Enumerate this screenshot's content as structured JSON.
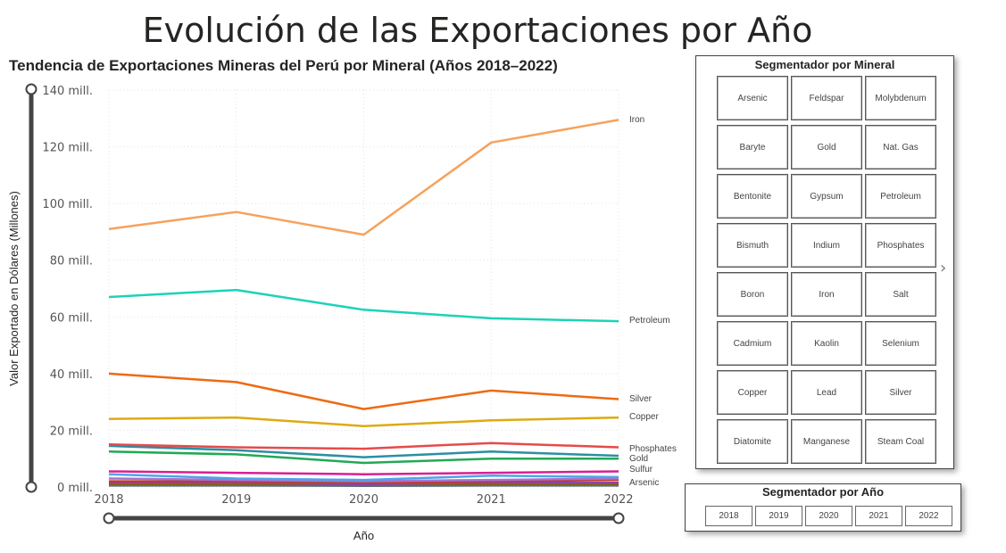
{
  "page_title": "Evolución de las Exportaciones por Año",
  "chart_data": {
    "type": "line",
    "title": "Tendencia de Exportaciones Mineras del Perú por Mineral (Años 2018–2022)",
    "xlabel": "Año",
    "ylabel": "Valor Exportado en Dólares (Millones)",
    "x": [
      "2018",
      "2019",
      "2020",
      "2021",
      "2022"
    ],
    "ylim": [
      0,
      140
    ],
    "yticks": [
      {
        "value": 0,
        "label": "0 mill."
      },
      {
        "value": 20,
        "label": "20 mill."
      },
      {
        "value": 40,
        "label": "40 mill."
      },
      {
        "value": 60,
        "label": "60 mill."
      },
      {
        "value": 80,
        "label": "80 mill."
      },
      {
        "value": 100,
        "label": "100 mill."
      },
      {
        "value": 120,
        "label": "120 mill."
      },
      {
        "value": 140,
        "label": "140 mill."
      }
    ],
    "grid": true,
    "series": [
      {
        "name": "Iron",
        "color": "#F5A25D",
        "values": [
          91,
          97,
          89,
          121.5,
          129.5
        ],
        "label": "Iron"
      },
      {
        "name": "Petroleum",
        "color": "#1BD3B8",
        "values": [
          67,
          69.5,
          62.5,
          59.5,
          58.5
        ],
        "label": "Petroleum"
      },
      {
        "name": "Silver",
        "color": "#EE6A12",
        "values": [
          40,
          37,
          27.5,
          34,
          31
        ],
        "label": "Silver"
      },
      {
        "name": "Copper",
        "color": "#DDAA12",
        "values": [
          24,
          24.5,
          21.5,
          23.5,
          24.5
        ],
        "label": "Copper"
      },
      {
        "name": "Phosphates",
        "color": "#E64A4A",
        "values": [
          15,
          14,
          13.5,
          15.5,
          14
        ],
        "label": "Phosphates"
      },
      {
        "name": "Gold",
        "color": "#2B8FA3",
        "values": [
          14.5,
          13,
          10.5,
          12.5,
          11
        ],
        "label": "Gold"
      },
      {
        "name": "",
        "color": "#22A855",
        "values": [
          12.5,
          11.5,
          8.5,
          10,
          10
        ],
        "label": ""
      },
      {
        "name": "Sulfur",
        "color": "#D81F92",
        "values": [
          5.5,
          5,
          4.5,
          5,
          5.5
        ],
        "label": "Sulfur"
      },
      {
        "name": "",
        "color": "#4FA3E8",
        "values": [
          4.5,
          3,
          2.5,
          4,
          3.5
        ],
        "label": ""
      },
      {
        "name": "",
        "color": "#A274D2",
        "values": [
          3,
          2.5,
          2,
          2.5,
          3
        ],
        "label": ""
      },
      {
        "name": "Arsenic",
        "color": "#C0392B",
        "values": [
          2,
          2,
          1.5,
          2,
          2.5
        ],
        "label": "Arsenic"
      },
      {
        "name": "",
        "color": "#8E44AD",
        "values": [
          1.5,
          1.5,
          1,
          1.5,
          1.5
        ],
        "label": ""
      },
      {
        "name": "",
        "color": "#7D6608",
        "values": [
          1,
          1,
          0.8,
          1,
          1
        ],
        "label": ""
      },
      {
        "name": "",
        "color": "#5D6D7E",
        "values": [
          0.5,
          0.5,
          0.4,
          0.5,
          0.5
        ],
        "label": ""
      }
    ]
  },
  "mineral_slicer": {
    "title": "Segmentador por Mineral",
    "items": [
      "Arsenic",
      "Feldspar",
      "Molybdenum",
      "Baryte",
      "Gold",
      "Nat. Gas",
      "Bentonite",
      "Gypsum",
      "Petroleum",
      "Bismuth",
      "Indium",
      "Phosphates",
      "Boron",
      "Iron",
      "Salt",
      "Cadmium",
      "Kaolin",
      "Selenium",
      "Copper",
      "Lead",
      "Silver",
      "Diatomite",
      "Manganese",
      "Steam Coal"
    ]
  },
  "year_slicer": {
    "title": "Segmentador por Año",
    "items": [
      "2018",
      "2019",
      "2020",
      "2021",
      "2022"
    ]
  }
}
